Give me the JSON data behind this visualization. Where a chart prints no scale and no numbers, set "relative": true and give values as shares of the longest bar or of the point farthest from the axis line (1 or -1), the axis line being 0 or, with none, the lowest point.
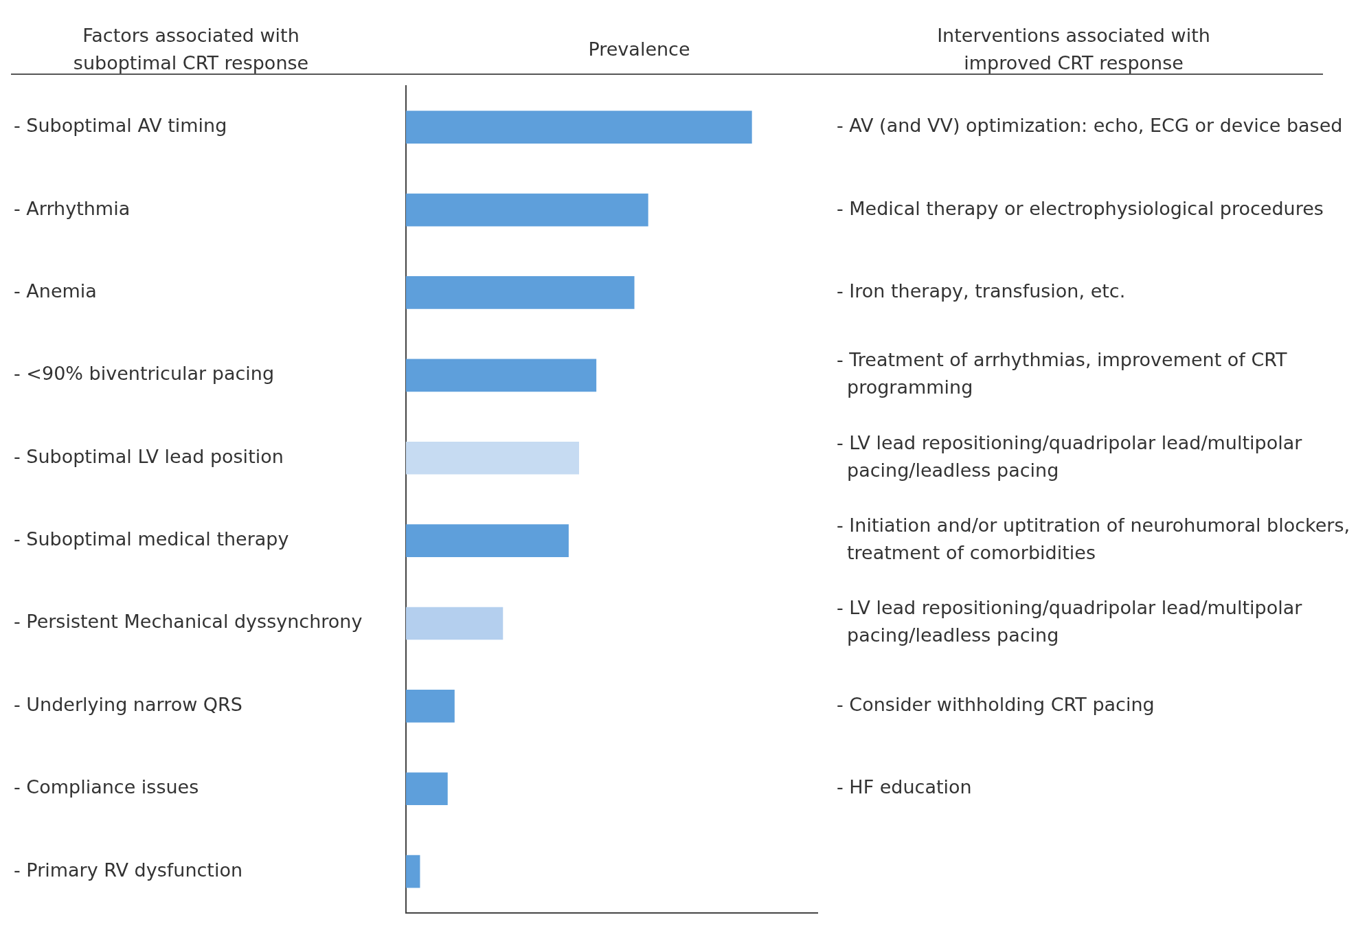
{
  "chart_data": {
    "type": "bar",
    "orientation": "horizontal",
    "relative": true,
    "title": "Prevalence",
    "ylabel": "Factors associated with suboptimal CRT response",
    "categories": [
      "- Suboptimal AV timing",
      "- Arrhythmia",
      "- Anemia",
      "- <90% biventricular pacing",
      "- Suboptimal LV lead position",
      "- Suboptimal medical therapy",
      "- Persistent Mechanical dyssynchrony",
      "- Underlying narrow QRS",
      "- Compliance issues",
      "- Primary RV dysfunction"
    ],
    "values": [
      1,
      0.7,
      0.66,
      0.55,
      0.5,
      0.47,
      0.28,
      0.14,
      0.12,
      0.04
    ],
    "colors": [
      "#5e9fdb",
      "#5e9fdb",
      "#5e9fdb",
      "#5e9fdb",
      "#c6dbf2",
      "#5e9fdb",
      "#b4cfee",
      "#5e9fdb",
      "#5e9fdb",
      "#5e9fdb"
    ],
    "grid": false,
    "legend": false,
    "annotations": [
      "Interventions associated with improved CRT response",
      "- AV (and VV) optimization: echo, ECG or device based",
      "- Medical therapy or electrophysiological procedures",
      "- Iron therapy, transfusion, etc.",
      "- Treatment of arrhythmias, improvement of CRT programming",
      "- LV lead repositioning/quadripolar lead/multipolar pacing/leadless pacing",
      "- Initiation and/or uptitration of neurohumoral blockers, treatment of comorbidities",
      "- LV lead repositioning/quadripolar lead/multipolar pacing/leadless pacing",
      "- Consider withholding CRT pacing",
      "- HF education"
    ]
  }
}
